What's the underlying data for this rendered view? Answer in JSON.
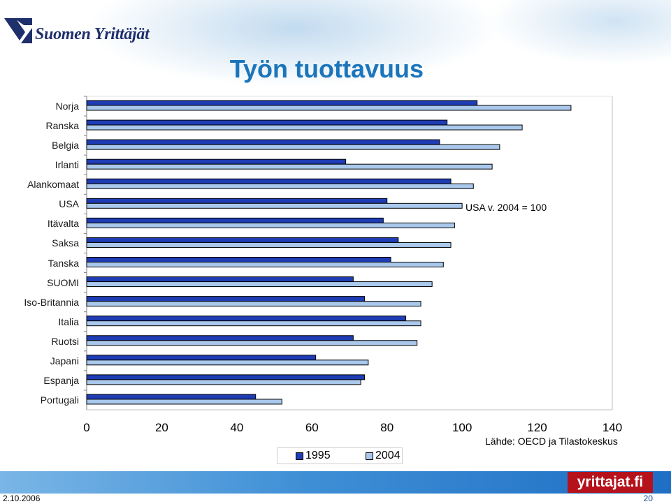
{
  "header": {
    "logo_text": "Suomen Yrittäjät",
    "title": "Työn tuottavuus"
  },
  "chart_data": {
    "type": "bar",
    "orientation": "horizontal",
    "categories": [
      "Norja",
      "Ranska",
      "Belgia",
      "Irlanti",
      "Alankomaat",
      "USA",
      "Itävalta",
      "Saksa",
      "Tanska",
      "SUOMI",
      "Iso-Britannia",
      "Italia",
      "Ruotsi",
      "Japani",
      "Espanja",
      "Portugali"
    ],
    "series": [
      {
        "name": "1995",
        "color": "#1e3cb4",
        "values": [
          104,
          96,
          94,
          69,
          97,
          80,
          79,
          83,
          81,
          71,
          74,
          85,
          71,
          61,
          74,
          45
        ]
      },
      {
        "name": "2004",
        "color": "#a9c8ec",
        "values": [
          129,
          116,
          110,
          108,
          103,
          100,
          98,
          97,
          95,
          92,
          89,
          89,
          88,
          75,
          73,
          52
        ]
      }
    ],
    "xlim": [
      0,
      140
    ],
    "xticks": [
      "0",
      "20",
      "40",
      "60",
      "80",
      "100",
      "120",
      "140"
    ],
    "annotation": "USA v. 2004 = 100",
    "source": "Lähde: OECD ja Tilastokeskus",
    "legend_position": "bottom"
  },
  "footer": {
    "logo_text": "yrittajat.fi",
    "date": "2.10.2006",
    "page": "20"
  }
}
